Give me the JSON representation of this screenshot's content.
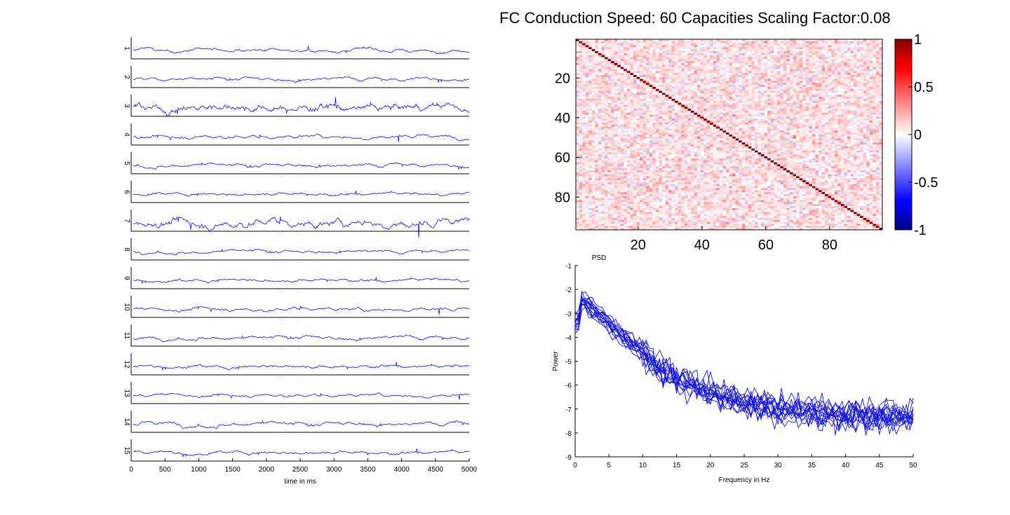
{
  "title": "FC Conduction Speed: 60  Capacities Scaling Factor:0.08",
  "colors": {
    "trace": "#1010dd",
    "axis": "#000000"
  },
  "chart_data": [
    {
      "type": "line",
      "name": "timeseries",
      "channels": [
        "1",
        "2",
        "3",
        "4",
        "5",
        "6",
        "7",
        "8",
        "9",
        "10",
        "11",
        "12",
        "13",
        "14",
        "15"
      ],
      "amplitudes": [
        0.25,
        0.25,
        0.6,
        0.25,
        0.25,
        0.22,
        0.6,
        0.22,
        0.22,
        0.25,
        0.25,
        0.25,
        0.22,
        0.28,
        0.25
      ],
      "xlim": [
        0,
        5000
      ],
      "xticks": [
        "0",
        "500",
        "1000",
        "1500",
        "2000",
        "2500",
        "3000",
        "3500",
        "4000",
        "4500",
        "5000"
      ],
      "xlabel": "time in ms"
    },
    {
      "type": "heatmap",
      "name": "fc-matrix",
      "size": 96,
      "diagonal": 1,
      "xticks": [
        "20",
        "40",
        "60",
        "80"
      ],
      "yticks": [
        "20",
        "40",
        "60",
        "80"
      ],
      "colorbar": {
        "range": [
          -1,
          1
        ],
        "ticks": [
          "1",
          "0.5",
          "0",
          "-0.5",
          "-1"
        ]
      }
    },
    {
      "type": "line",
      "name": "psd",
      "title": "PSD",
      "xlabel": "Frequency in Hz",
      "ylabel": "Power",
      "xlim": [
        0,
        50
      ],
      "ylim": [
        -9,
        -1
      ],
      "xticks": [
        "0",
        "5",
        "10",
        "15",
        "20",
        "25",
        "30",
        "35",
        "40",
        "45",
        "50"
      ],
      "yticks": [
        "-1",
        "-2",
        "-3",
        "-4",
        "-5",
        "-6",
        "-7",
        "-8",
        "-9"
      ],
      "n_series": 15,
      "mean_curve": {
        "x": [
          0,
          1,
          2,
          4,
          6,
          8,
          10,
          12,
          15,
          20,
          25,
          30,
          35,
          40,
          45,
          50
        ],
        "y": [
          -2.8,
          -2.4,
          -2.7,
          -3.1,
          -3.7,
          -4.1,
          -4.6,
          -5.2,
          -5.7,
          -6.3,
          -6.7,
          -7.0,
          -7.1,
          -7.2,
          -7.3,
          -7.3
        ]
      }
    }
  ]
}
